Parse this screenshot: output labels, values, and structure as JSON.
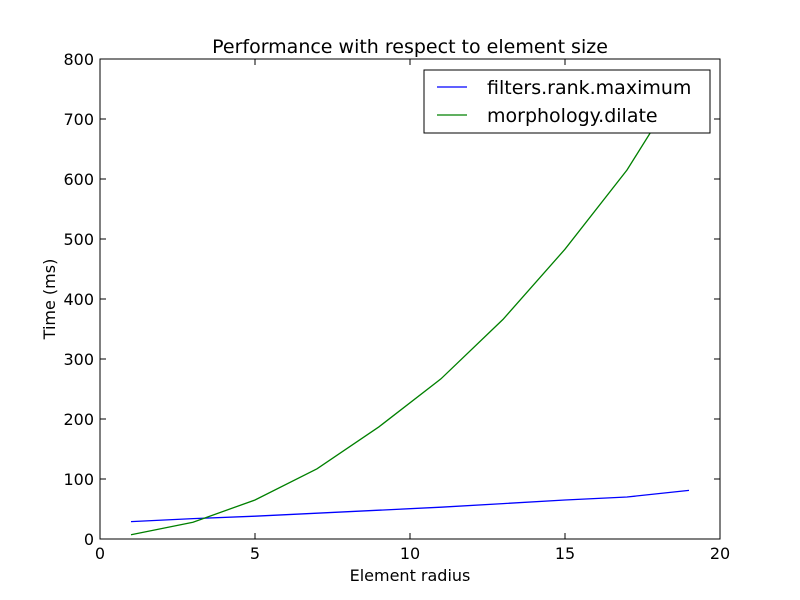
{
  "chart_data": {
    "type": "line",
    "title": "Performance with respect to element size",
    "xlabel": "Element radius",
    "ylabel": "Time (ms)",
    "xlim": [
      0,
      20
    ],
    "ylim": [
      0,
      800
    ],
    "xticks": [
      0,
      5,
      10,
      15,
      20
    ],
    "yticks": [
      0,
      100,
      200,
      300,
      400,
      500,
      600,
      700,
      800
    ],
    "grid": false,
    "legend_position": "top-right",
    "series": [
      {
        "name": "filters.rank.maximum",
        "color": "#0000ff",
        "x": [
          1,
          3,
          5,
          7,
          9,
          11,
          13,
          15,
          17,
          19
        ],
        "y": [
          29,
          34,
          38,
          43,
          48,
          53,
          59,
          65,
          70,
          81
        ]
      },
      {
        "name": "morphology.dilate",
        "color": "#008000",
        "x": [
          1,
          3,
          5,
          7,
          9,
          11,
          13,
          15,
          17,
          19
        ],
        "y": [
          7,
          28,
          65,
          117,
          187,
          267,
          366,
          483,
          615,
          780
        ]
      }
    ]
  }
}
